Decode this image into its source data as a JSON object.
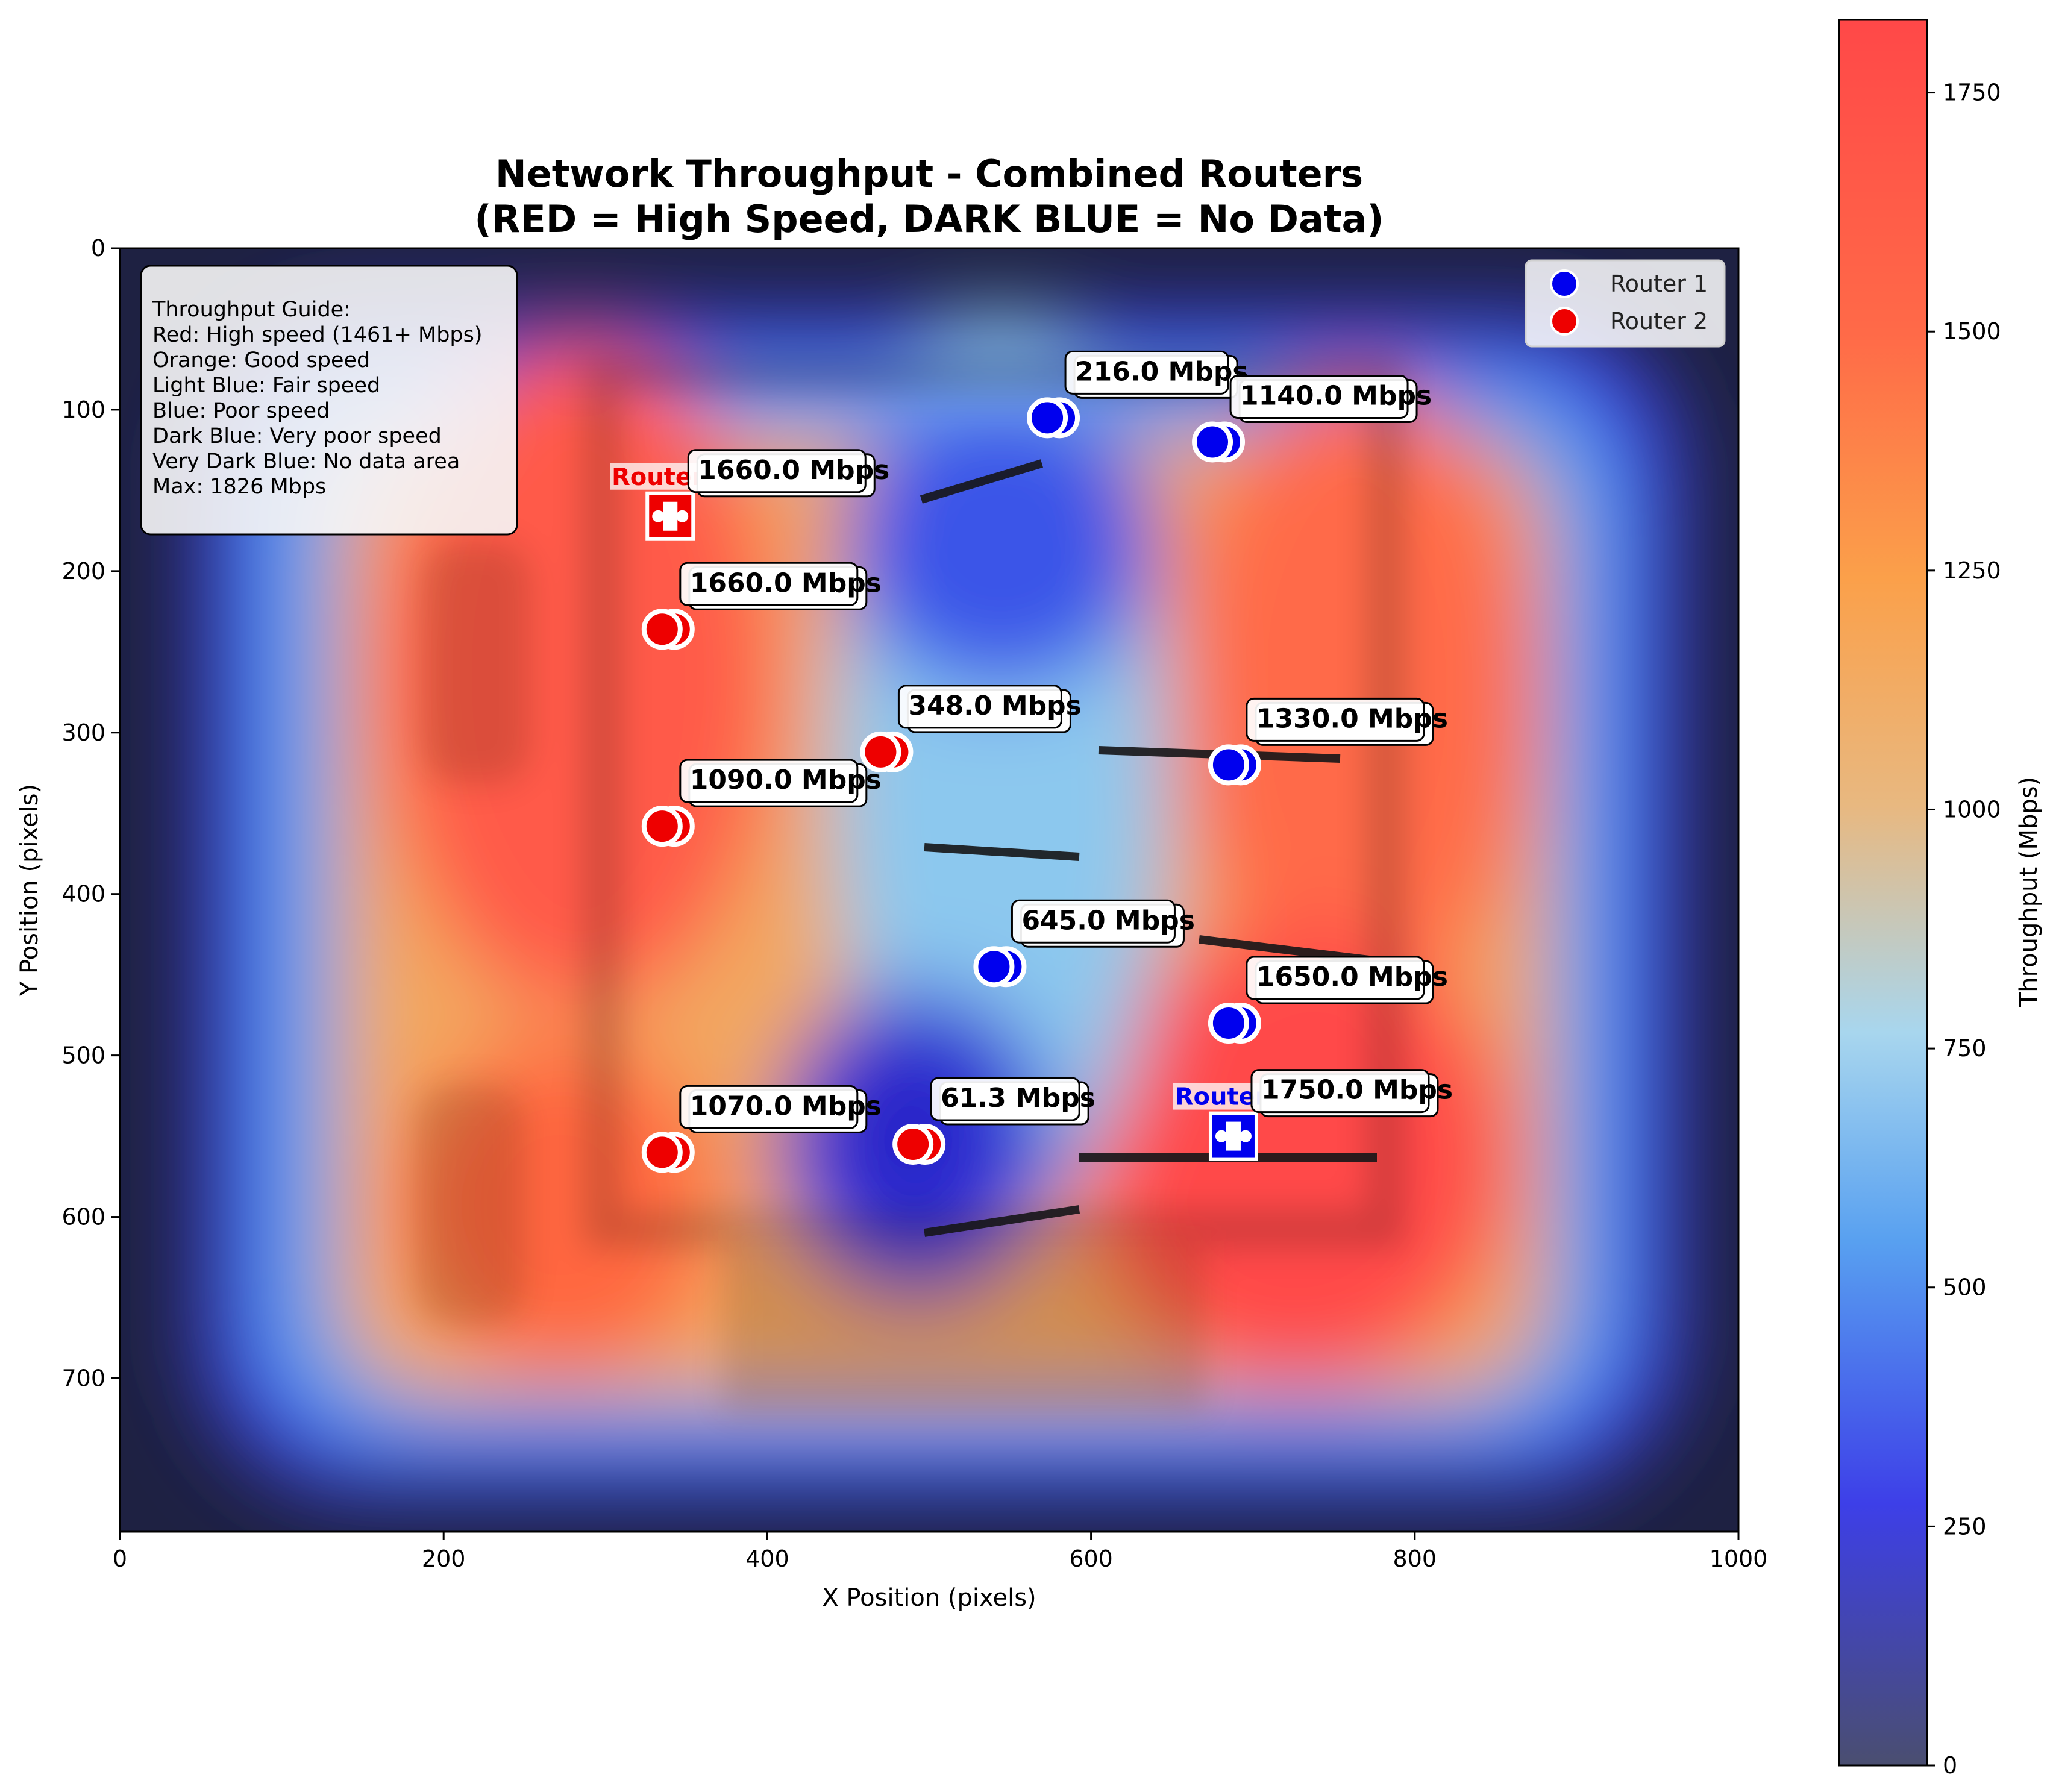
{
  "chart_data": {
    "type": "heatmap",
    "title": [
      "Network Throughput - Combined Routers",
      "(RED = High Speed, DARK BLUE = No Data)"
    ],
    "xlabel": "X Position (pixels)",
    "ylabel": "Y Position (pixels)",
    "xlim": [
      0,
      1000
    ],
    "ylim": [
      795,
      0
    ],
    "x_ticks": [
      0,
      200,
      400,
      600,
      800,
      1000
    ],
    "y_ticks": [
      0,
      100,
      200,
      300,
      400,
      500,
      600,
      700
    ],
    "colorbar": {
      "label": "Throughput (Mbps)",
      "range": [
        0,
        1826
      ],
      "ticks": [
        0,
        250,
        500,
        750,
        1000,
        1250,
        1500,
        1750
      ],
      "stops": [
        "#1c1f4d",
        "#3a3de0",
        "#4f8ef0",
        "#a8d8f2",
        "#f2b060",
        "#ff7e45",
        "#ff4848"
      ]
    },
    "guide": {
      "lines": [
        "Throughput Guide:",
        "Red: High speed (1461+ Mbps)",
        "Orange: Good speed",
        "Light Blue: Fair speed",
        "Blue: Poor speed",
        "Dark Blue: Very poor speed",
        "Very Dark Blue: No data area",
        "Max: 1826 Mbps"
      ]
    },
    "legend": {
      "placement": "top-right",
      "items": [
        {
          "label": "Router 1",
          "color": "#0000ee"
        },
        {
          "label": "Router 2",
          "color": "#ee0000"
        }
      ]
    },
    "routers": [
      {
        "name": "Router 1",
        "x": 688,
        "y": 550,
        "color": "#0000ee"
      },
      {
        "name": "Router 2",
        "x": 340,
        "y": 166,
        "color": "#ee0000"
      }
    ],
    "series": [
      {
        "name": "Router 1",
        "color": "#0000ee",
        "points": [
          {
            "x": 573,
            "y": 105,
            "value": 216.0,
            "label": "216.0 Mbps"
          },
          {
            "x": 675,
            "y": 120,
            "value": 1140.0,
            "label": "1140.0 Mbps"
          },
          {
            "x": 685,
            "y": 320,
            "value": 1330.0,
            "label": "1330.0 Mbps"
          },
          {
            "x": 540,
            "y": 445,
            "value": 645.0,
            "label": "645.0 Mbps"
          },
          {
            "x": 685,
            "y": 480,
            "value": 1650.0,
            "label": "1650.0 Mbps"
          },
          {
            "x": 688,
            "y": 550,
            "value": 1750.0,
            "label": "1750.0 Mbps"
          }
        ]
      },
      {
        "name": "Router 2",
        "color": "#ee0000",
        "points": [
          {
            "x": 340,
            "y": 166,
            "value": 1660.0,
            "label": "1660.0 Mbps"
          },
          {
            "x": 335,
            "y": 236,
            "value": 1660.0,
            "label": "1660.0 Mbps"
          },
          {
            "x": 470,
            "y": 312,
            "value": 348.0,
            "label": "348.0 Mbps"
          },
          {
            "x": 335,
            "y": 358,
            "value": 1090.0,
            "label": "1090.0 Mbps"
          },
          {
            "x": 335,
            "y": 560,
            "value": 1070.0,
            "label": "1070.0 Mbps"
          },
          {
            "x": 490,
            "y": 555,
            "value": 61.3,
            "label": "61.3 Mbps"
          }
        ]
      }
    ]
  }
}
